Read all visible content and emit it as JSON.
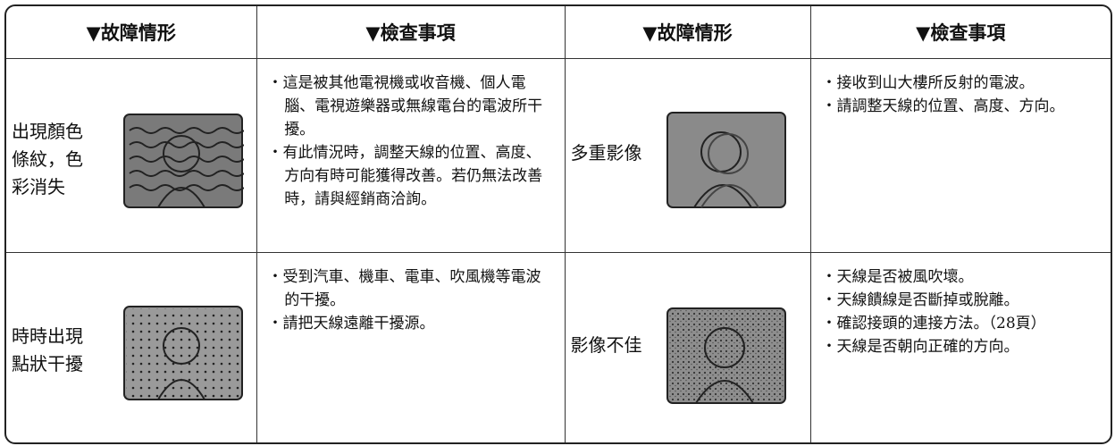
{
  "table": {
    "header": [
      "▼故障情形",
      "▼檢查事項",
      "▼故障情形",
      "▼檢查事項"
    ],
    "rows": [
      {
        "problem_left": [
          "出現顏色",
          "條紋，色",
          "彩消失"
        ],
        "checks_left": [
          "・這是被其他電視機或收音機、個人電腦、電視遊樂器或無線電台的電波所干擾。",
          "・有此情況時，調整天線的位置、高度、方向有時可能獲得改善。若仍無法改善時，請與經銷商洽詢。"
        ],
        "problem_right": [
          "多重影像"
        ],
        "checks_right": [
          "・接收到山大樓所反射的電波。",
          "・請調整天線的位置、高度、方向。"
        ]
      },
      {
        "problem_left": [
          "時時出現",
          "點狀干擾"
        ],
        "checks_left": [
          "・受到汽車、機車、電車、吹風機等電波的干擾。",
          "・請把天線遠離干擾源。"
        ],
        "problem_right": [
          "影像不佳"
        ],
        "checks_right": [
          "・天線是否被風吹壞。",
          "・天線饋線是否斷掉或脫離。",
          "・確認接頭的連接方法。（28頁）",
          "・天線是否朝向正確的方向。"
        ]
      }
    ]
  }
}
